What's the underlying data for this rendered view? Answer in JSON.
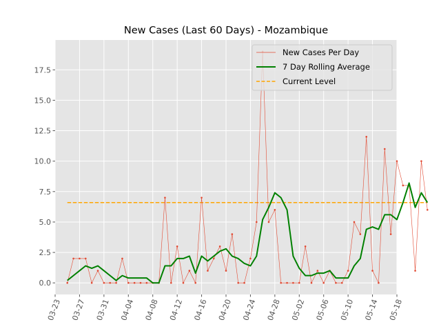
{
  "chart_data": {
    "type": "line",
    "title": "New Cases (Last 60 Days) - Mozambique",
    "xlabel": "",
    "ylabel": "",
    "x_start": "03-25",
    "x_tick_labels": [
      "03-23",
      "03-27",
      "03-31",
      "04-04",
      "04-08",
      "04-12",
      "04-16",
      "04-20",
      "04-24",
      "04-28",
      "05-02",
      "05-06",
      "05-10",
      "05-14",
      "05-18"
    ],
    "x_tick_rotation_deg": -70,
    "xlim": [
      "03-23",
      "05-18"
    ],
    "y_ticks": [
      0.0,
      2.5,
      5.0,
      7.5,
      10.0,
      12.5,
      15.0,
      17.5
    ],
    "y_tick_labels": [
      "0.0",
      "2.5",
      "5.0",
      "7.5",
      "10.0",
      "12.5",
      "15.0",
      "17.5"
    ],
    "ylim": [
      -0.95,
      19.95
    ],
    "grid": true,
    "background": "#e5e5e5",
    "legend_position": "top-right",
    "series": [
      {
        "name": "New Cases Per Day",
        "style": "thin-line-with-markers",
        "color": "#e24a33",
        "values": [
          0,
          2,
          2,
          2,
          0,
          1,
          0,
          0,
          0,
          2,
          0,
          0,
          0,
          0,
          0,
          0,
          7,
          0,
          3,
          0,
          1,
          0,
          7,
          1,
          2,
          3,
          1,
          4,
          0,
          0,
          2,
          5,
          19,
          5,
          6,
          0,
          0,
          0,
          0,
          3,
          0,
          1,
          0,
          1,
          0,
          0,
          1,
          5,
          4,
          12,
          1,
          0,
          11,
          4,
          10,
          8,
          8,
          1,
          10,
          6
        ]
      },
      {
        "name": "7 Day Rolling Average",
        "style": "thick-line",
        "color": "#008000",
        "values": [
          0.2,
          0.6,
          1.0,
          1.4,
          1.2,
          1.4,
          1.0,
          0.6,
          0.2,
          0.6,
          0.4,
          0.4,
          0.4,
          0.4,
          0.0,
          0.0,
          1.4,
          1.4,
          2.0,
          2.0,
          2.2,
          0.8,
          2.2,
          1.8,
          2.2,
          2.6,
          2.8,
          2.2,
          2.0,
          1.6,
          1.4,
          2.2,
          5.2,
          6.2,
          7.4,
          7.0,
          6.0,
          2.2,
          1.2,
          0.6,
          0.6,
          0.8,
          0.8,
          1.0,
          0.4,
          0.4,
          0.4,
          1.4,
          2.0,
          4.4,
          4.6,
          4.4,
          5.6,
          5.6,
          5.2,
          6.6,
          8.2,
          6.2,
          7.4,
          6.6
        ]
      },
      {
        "name": "Current Level",
        "style": "dashed-line",
        "color": "#ffa500",
        "value": 6.6
      }
    ]
  }
}
